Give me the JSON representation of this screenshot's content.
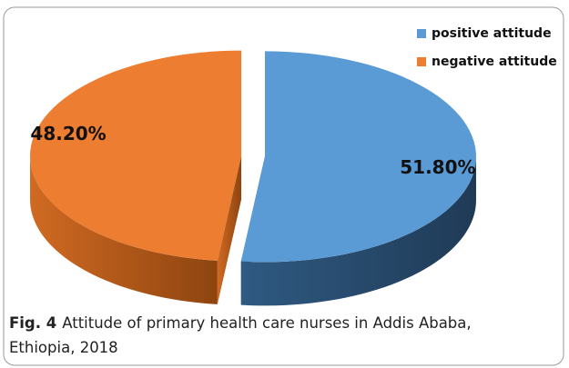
{
  "chart_data": {
    "type": "pie",
    "categories": [
      "positive attitude",
      "negative attitude"
    ],
    "values": [
      51.8,
      48.2
    ],
    "value_labels": [
      "51.80%",
      "48.20%"
    ],
    "colors": [
      "#5b9bd5",
      "#ed7d31"
    ],
    "legend": "top-right"
  },
  "caption": {
    "label": "Fig. 4",
    "text": "Attitude of primary health care nurses in Addis Ababa, Ethiopia, 2018"
  }
}
